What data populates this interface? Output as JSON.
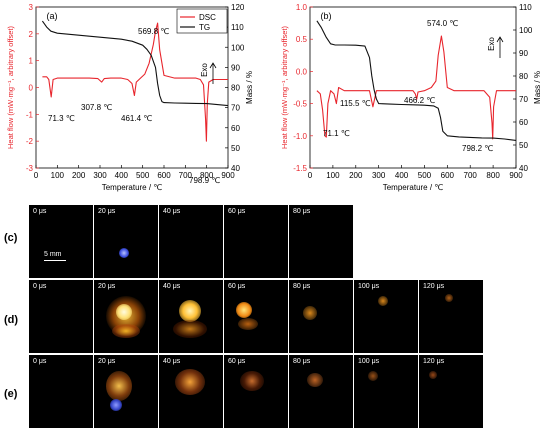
{
  "chart_data": [
    {
      "type": "line",
      "panel_label": "(a)",
      "xlabel": "Temperature / ℃",
      "ylabel_left": "Heat flow (mW·mg⁻¹, arbitrary offset)",
      "ylabel_right": "Mass / %",
      "xlim": [
        0,
        900
      ],
      "xticks": [
        "0",
        "100",
        "200",
        "300",
        "400",
        "500",
        "600",
        "700",
        "800",
        "900"
      ],
      "ylim_left": [
        -3,
        3
      ],
      "yticks_left": [
        "-3",
        "-2",
        "-1",
        "0",
        "1",
        "2",
        "3"
      ],
      "ylim_right": [
        40,
        120
      ],
      "yticks_right": [
        "40",
        "50",
        "60",
        "70",
        "80",
        "90",
        "100",
        "110",
        "120"
      ],
      "legend": [
        "DSC",
        "TG"
      ],
      "legend_position": "top-right",
      "exo_label": "Exo",
      "annotations": [
        "71.3 ℃",
        "307.8 ℃",
        "461.4 ℃",
        "569.8 ℃",
        "798.9 ℃"
      ],
      "series": [
        {
          "name": "DSC",
          "axis": "left",
          "color": "#e8262d",
          "x": [
            30,
            50,
            60,
            71.3,
            80,
            100,
            150,
            200,
            250,
            290,
            307.8,
            320,
            350,
            400,
            430,
            450,
            461.4,
            470,
            490,
            510,
            530,
            550,
            560,
            569.8,
            580,
            600,
            650,
            700,
            750,
            770,
            785,
            795,
            798.9,
            803,
            810,
            830,
            860,
            900
          ],
          "y": [
            0.4,
            0.4,
            0.3,
            -0.35,
            0.3,
            0.35,
            0.35,
            0.35,
            0.35,
            0.33,
            0.2,
            0.33,
            0.35,
            0.35,
            0.3,
            0.15,
            -0.3,
            0.2,
            0.35,
            0.5,
            0.9,
            1.6,
            2.1,
            2.4,
            1.4,
            0.45,
            0.35,
            0.35,
            0.35,
            0.3,
            0.1,
            -1.2,
            -2.0,
            -0.6,
            0.2,
            0.3,
            0.3,
            0.3
          ]
        },
        {
          "name": "TG",
          "axis": "right",
          "color": "#111111",
          "x": [
            30,
            50,
            70,
            100,
            150,
            200,
            250,
            300,
            350,
            400,
            450,
            500,
            520,
            540,
            560,
            570,
            580,
            590,
            600,
            650,
            700,
            750,
            800,
            850,
            900
          ],
          "y": [
            113,
            110,
            108,
            107,
            106.5,
            106,
            105.5,
            105,
            104.5,
            104,
            103,
            101,
            99,
            96,
            90,
            82,
            76,
            73,
            72.5,
            72.3,
            72.2,
            72.1,
            72,
            71.5,
            71
          ]
        }
      ]
    },
    {
      "type": "line",
      "panel_label": "(b)",
      "xlabel": "Temperature / ℃",
      "ylabel_left": "Heat flow (mW·mg⁻¹, arbitrary offset)",
      "ylabel_right": "Mass / %",
      "xlim": [
        0,
        900
      ],
      "xticks": [
        "0",
        "100",
        "200",
        "300",
        "400",
        "500",
        "600",
        "700",
        "800",
        "900"
      ],
      "ylim_left": [
        -1.5,
        1.0
      ],
      "yticks_left": [
        "-1.5",
        "-1.0",
        "-0.5",
        "0.0",
        "0.5",
        "1.0"
      ],
      "ylim_right": [
        40,
        110
      ],
      "yticks_right": [
        "40",
        "50",
        "60",
        "70",
        "80",
        "90",
        "100",
        "110"
      ],
      "exo_label": "Exo",
      "annotations": [
        "115.5 ℃",
        "71.1 ℃",
        "466.2 ℃",
        "574.0 ℃",
        "798.2 ℃"
      ],
      "series": [
        {
          "name": "",
          "axis": "left",
          "color": "#e8262d",
          "x": [
            30,
            45,
            55,
            65,
            71.1,
            78,
            90,
            105,
            115.5,
            125,
            150,
            200,
            260,
            275,
            290,
            350,
            400,
            450,
            460,
            466.2,
            472,
            500,
            530,
            550,
            560,
            574,
            585,
            600,
            630,
            700,
            760,
            785,
            795,
            798.2,
            802,
            815,
            860,
            900
          ],
          "y": [
            -0.3,
            -0.35,
            -0.6,
            -1.0,
            -1.02,
            -0.5,
            -0.3,
            -0.35,
            -0.5,
            -0.25,
            -0.3,
            -0.3,
            -0.3,
            -0.55,
            -0.3,
            -0.3,
            -0.3,
            -0.3,
            -0.35,
            -0.43,
            -0.32,
            -0.3,
            -0.25,
            -0.15,
            0.25,
            0.55,
            0.3,
            -0.25,
            -0.3,
            -0.3,
            -0.3,
            -0.4,
            -0.8,
            -1.05,
            -0.55,
            -0.3,
            -0.3,
            -0.3
          ]
        },
        {
          "name": "",
          "axis": "right",
          "color": "#111111",
          "x": [
            30,
            50,
            70,
            90,
            110,
            150,
            200,
            240,
            260,
            270,
            280,
            290,
            300,
            350,
            400,
            450,
            500,
            540,
            560,
            570,
            580,
            600,
            650,
            700,
            750,
            800,
            850,
            900
          ],
          "y": [
            104,
            101,
            97,
            94,
            93.5,
            93.5,
            93.4,
            93,
            88,
            80,
            74,
            70,
            68,
            67.8,
            67.6,
            67.5,
            67.3,
            67,
            66,
            62,
            56,
            54,
            53.5,
            53.3,
            53.1,
            53,
            52.6,
            52
          ]
        }
      ]
    }
  ],
  "rows": [
    {
      "label": "(c)",
      "frames": [
        "0 μs",
        "20 μs",
        "40 μs",
        "60 μs",
        "80 μs"
      ],
      "scale": "5 mm"
    },
    {
      "label": "(d)",
      "frames": [
        "0 μs",
        "20 μs",
        "40 μs",
        "60 μs",
        "80 μs",
        "100 μs",
        "120 μs"
      ]
    },
    {
      "label": "(e)",
      "frames": [
        "0 μs",
        "20 μs",
        "40 μs",
        "60 μs",
        "80 μs",
        "100 μs",
        "120 μs"
      ]
    }
  ]
}
